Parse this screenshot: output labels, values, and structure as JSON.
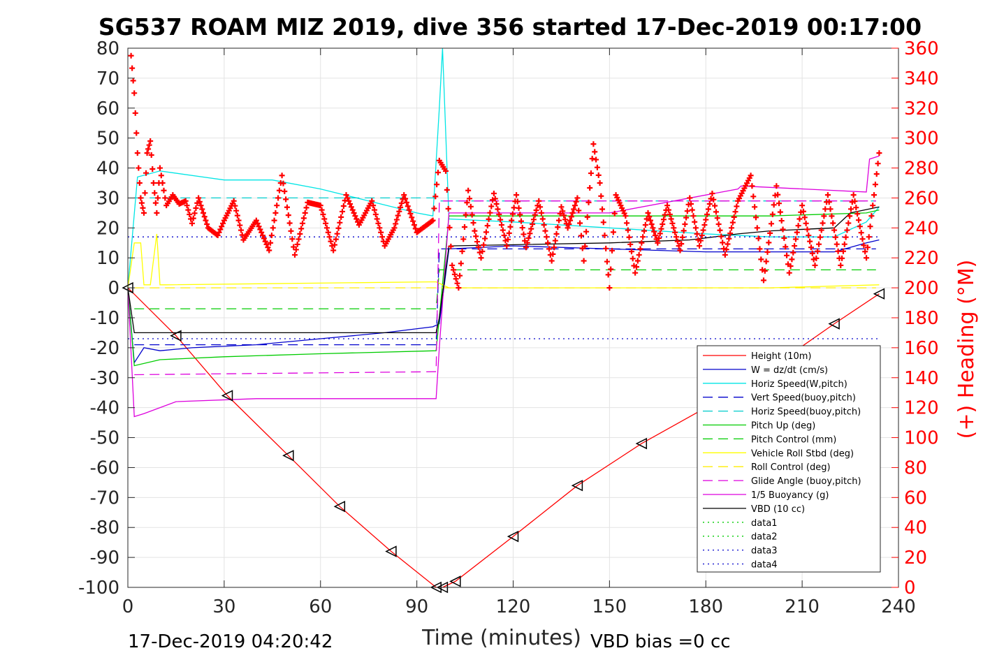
{
  "chart_data": {
    "type": "line",
    "title": "SG537 ROAM MIZ 2019, dive 356 started 17-Dec-2019 00:17:00",
    "xlabel": "Time (minutes)",
    "ylabel_right": "(+) Heading (°M)",
    "xlim": [
      0,
      240
    ],
    "ylim": [
      -100,
      80
    ],
    "ylim_right": [
      0,
      360
    ],
    "x_ticks": [
      "0",
      "30",
      "60",
      "90",
      "120",
      "150",
      "180",
      "210",
      "240"
    ],
    "y_ticks": [
      "80",
      "70",
      "60",
      "50",
      "40",
      "30",
      "20",
      "10",
      "0",
      "-10",
      "-20",
      "-30",
      "-40",
      "-50",
      "-60",
      "-70",
      "-80",
      "-90",
      "-100"
    ],
    "y_right_ticks": [
      "360",
      "340",
      "320",
      "300",
      "280",
      "260",
      "240",
      "220",
      "200",
      "180",
      "160",
      "140",
      "120",
      "100",
      "80",
      "60",
      "40",
      "20",
      "0"
    ],
    "grid": true,
    "legend_position": "bottom-right",
    "footer_left": "17-Dec-2019 04:20:42",
    "footer_right": "VBD bias =0 cc",
    "series": [
      {
        "name": "Height (10m)",
        "color": "#ff0000",
        "style": "solid",
        "x": [
          0,
          15,
          31,
          50,
          66,
          82,
          96,
          98,
          102,
          120,
          140,
          160,
          180,
          200,
          220,
          234
        ],
        "y": [
          0,
          -16,
          -36,
          -56,
          -73,
          -88,
          -100,
          -100,
          -98,
          -83,
          -66,
          -52,
          -40,
          -27,
          -12,
          -2
        ]
      },
      {
        "name": "W = dz/dt (cm/s)",
        "color": "#0000cc",
        "style": "solid",
        "x": [
          0,
          2,
          5,
          10,
          20,
          40,
          60,
          80,
          95,
          97,
          100,
          120,
          150,
          180,
          200,
          220,
          230,
          234
        ],
        "y": [
          0,
          -25,
          -20,
          -21,
          -20,
          -19,
          -17,
          -15,
          -13,
          -12,
          13,
          14,
          13,
          12,
          12,
          12,
          15,
          16
        ]
      },
      {
        "name": "Horiz Speed(W,pitch)",
        "color": "#00e5e5",
        "style": "solid",
        "x": [
          0,
          3,
          10,
          30,
          45,
          60,
          75,
          90,
          95,
          97,
          98,
          100,
          120,
          150,
          180,
          200,
          220,
          230,
          234
        ],
        "y": [
          0,
          37,
          39,
          36,
          36,
          33,
          29,
          25,
          24,
          60,
          80,
          23,
          22,
          20,
          18,
          17,
          17,
          22,
          27
        ]
      },
      {
        "name": "Vert Speed(buoy,pitch)",
        "color": "#0000cc",
        "style": "dashed",
        "x": [
          2,
          96,
          97,
          233
        ],
        "y": [
          -19,
          -19,
          13,
          13
        ]
      },
      {
        "name": "Horiz Speed(buoy,pitch)",
        "color": "#00cccc",
        "style": "dashed",
        "x": [
          2,
          96,
          97,
          233
        ],
        "y": [
          30,
          30,
          29,
          29
        ]
      },
      {
        "name": "Pitch Up (deg)",
        "color": "#00cc00",
        "style": "solid",
        "x": [
          0,
          2,
          10,
          30,
          60,
          96,
          97,
          100,
          150,
          200,
          230,
          234
        ],
        "y": [
          0,
          -26,
          -24,
          -23,
          -22,
          -21,
          -10,
          24,
          24,
          24,
          25,
          26
        ]
      },
      {
        "name": "Pitch Control (mm)",
        "color": "#00cc00",
        "style": "dashed",
        "x": [
          2,
          96,
          97,
          233
        ],
        "y": [
          -7,
          -7,
          6,
          6
        ]
      },
      {
        "name": "Vehicle Roll Stbd (deg)",
        "color": "#ffff00",
        "style": "solid",
        "x": [
          0,
          2,
          4,
          5,
          7,
          9,
          10,
          12,
          96,
          100,
          150,
          200,
          234
        ],
        "y": [
          0,
          15,
          15,
          1,
          1,
          18,
          1,
          1,
          2,
          0,
          0,
          0,
          1
        ]
      },
      {
        "name": "Roll Control (deg)",
        "color": "#ffee00",
        "style": "dashed",
        "x": [
          2,
          233
        ],
        "y": [
          0,
          0
        ]
      },
      {
        "name": "Glide Angle (buoy,pitch)",
        "color": "#dd00dd",
        "style": "dashed",
        "x": [
          2,
          96,
          97,
          233
        ],
        "y": [
          -29,
          -28,
          29,
          29
        ]
      },
      {
        "name": "1/5 Buoyancy (g)",
        "color": "#dd00dd",
        "style": "solid",
        "x": [
          0,
          2,
          5,
          15,
          40,
          70,
          96,
          97,
          100,
          150,
          190,
          191,
          230,
          231,
          234
        ],
        "y": [
          0,
          -43,
          -42,
          -38,
          -37,
          -37,
          -37,
          -20,
          25,
          25,
          33,
          34,
          32,
          43,
          44
        ]
      },
      {
        "name": "VBD (10 cc)",
        "color": "#000000",
        "style": "solid",
        "x": [
          0,
          2,
          96,
          97,
          100,
          150,
          175,
          190,
          200,
          220,
          225,
          234
        ],
        "y": [
          0,
          -15,
          -15,
          -10,
          14,
          15,
          16,
          18,
          19,
          20,
          25,
          27
        ]
      },
      {
        "name": "data1",
        "color": "#00cc00",
        "style": "dotted",
        "x": [],
        "y": []
      },
      {
        "name": "data2",
        "color": "#00cc00",
        "style": "dotted",
        "x": [],
        "y": []
      },
      {
        "name": "data3",
        "color": "#0000cc",
        "style": "dotted",
        "x": [
          0,
          234
        ],
        "y": [
          -17,
          -17
        ]
      },
      {
        "name": "data4",
        "color": "#0000cc",
        "style": "dotted",
        "x": [
          0,
          234
        ],
        "y": [
          17,
          17
        ]
      }
    ],
    "heading": {
      "name": "Heading",
      "axis": "right",
      "color": "#ff0000",
      "marker": "+",
      "x": [
        1,
        2,
        3,
        4,
        5,
        6,
        7,
        8,
        9,
        10,
        12,
        14,
        16,
        18,
        20,
        22,
        25,
        28,
        30,
        33,
        36,
        40,
        44,
        48,
        52,
        56,
        60,
        64,
        68,
        72,
        76,
        80,
        83,
        86,
        90,
        95,
        97,
        99,
        101,
        103,
        106,
        108,
        110,
        114,
        118,
        121,
        124,
        128,
        132,
        135,
        137,
        140,
        142,
        145,
        147,
        150,
        152,
        155,
        158,
        162,
        165,
        168,
        172,
        175,
        178,
        182,
        186,
        190,
        194,
        198,
        202,
        206,
        210,
        214,
        218,
        222,
        226,
        230,
        234
      ],
      "y": [
        355,
        330,
        290,
        260,
        250,
        290,
        298,
        270,
        250,
        280,
        255,
        262,
        256,
        258,
        243,
        260,
        240,
        235,
        245,
        258,
        232,
        245,
        225,
        275,
        222,
        257,
        255,
        225,
        262,
        242,
        258,
        228,
        240,
        262,
        237,
        245,
        285,
        278,
        215,
        200,
        265,
        238,
        220,
        263,
        228,
        262,
        227,
        258,
        218,
        254,
        240,
        260,
        218,
        296,
        270,
        200,
        262,
        248,
        210,
        250,
        230,
        255,
        225,
        260,
        228,
        263,
        222,
        258,
        275,
        205,
        268,
        210,
        255,
        215,
        262,
        215,
        262,
        220,
        290
      ]
    }
  }
}
